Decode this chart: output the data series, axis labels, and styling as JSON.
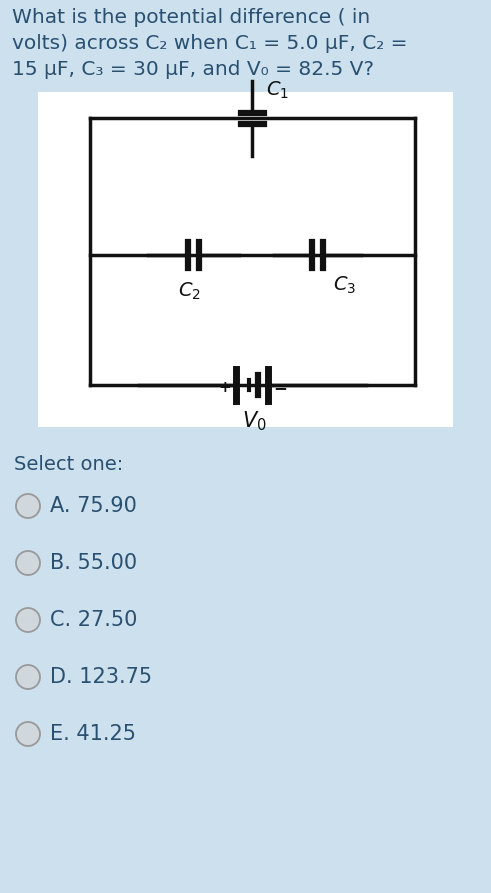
{
  "background_color": "#cce0ee",
  "title_lines": [
    "What is the potential difference ( in",
    "volts) across C₂ when C₁ = 5.0 μF, C₂ =",
    "15 μF, C₃ = 30 μF, and V₀ = 82.5 V?"
  ],
  "circuit_bg": "#ffffff",
  "circuit_line_color": "#111111",
  "select_one": "Select one:",
  "options": [
    "A. 75.90",
    "B. 55.00",
    "C. 27.50",
    "D. 123.75",
    "E. 41.25"
  ],
  "title_fontsize": 14.5,
  "option_fontsize": 15.0,
  "text_color": "#2a5070"
}
